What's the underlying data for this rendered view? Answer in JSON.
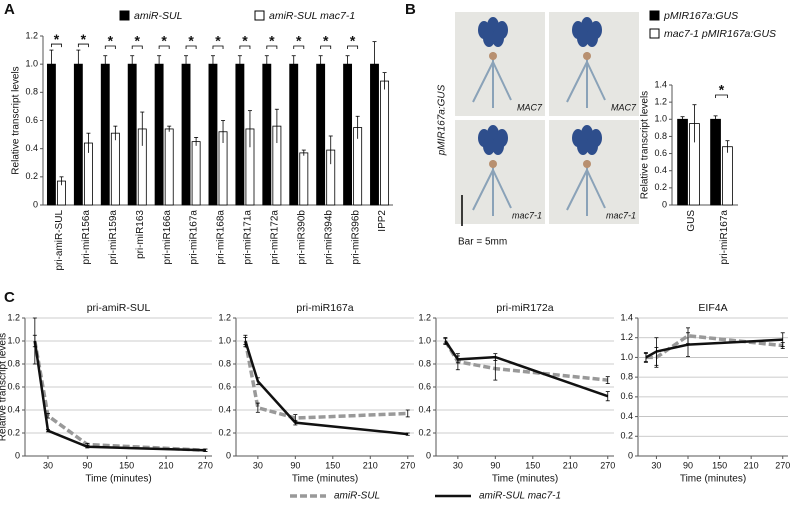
{
  "chart_data": [
    {
      "type": "bar",
      "panel": "A",
      "ylabel": "Relative transcript levels",
      "categories": [
        "pri-amiR-SUL",
        "pri-miR156a",
        "pri-miR159a",
        "pri-miR163",
        "pri-miR166a",
        "pri-miR167a",
        "pri-miR168a",
        "pri-miR171a",
        "pri-miR172a",
        "pri-miR390b",
        "pri-miR394b",
        "pri-miR396b",
        "IPP2"
      ],
      "series": [
        {
          "name": "amiR-SUL",
          "color": "#000000",
          "values": [
            1.0,
            1.0,
            1.0,
            1.0,
            1.0,
            1.0,
            1.0,
            1.0,
            1.0,
            1.0,
            1.0,
            1.0,
            1.0
          ],
          "errors": [
            0.1,
            0.1,
            0.06,
            0.06,
            0.06,
            0.06,
            0.06,
            0.06,
            0.06,
            0.06,
            0.06,
            0.06,
            0.16
          ]
        },
        {
          "name": "amiR-SUL mac7-1",
          "color": "#ffffff",
          "values": [
            0.17,
            0.44,
            0.51,
            0.54,
            0.54,
            0.45,
            0.52,
            0.54,
            0.56,
            0.37,
            0.39,
            0.55,
            0.88
          ],
          "errors": [
            0.03,
            0.07,
            0.05,
            0.12,
            0.02,
            0.03,
            0.08,
            0.13,
            0.12,
            0.02,
            0.1,
            0.08,
            0.06
          ]
        }
      ],
      "significance": [
        "*",
        "*",
        "*",
        "*",
        "*",
        "*",
        "*",
        "*",
        "*",
        "*",
        "*",
        "*",
        null
      ],
      "ylim": [
        0,
        1.2
      ],
      "yticks": [
        0,
        0.2,
        0.4,
        0.6,
        0.8,
        {
          "value": 1,
          "label": "1.0"
        },
        1.2
      ]
    },
    {
      "type": "bar",
      "panel": "B",
      "ylabel": "Relative transcript levels",
      "categories": [
        "GUS",
        "pri-miR167a"
      ],
      "series": [
        {
          "name": "pMIR167a:GUS",
          "color": "#000000",
          "values": [
            1.0,
            1.0
          ],
          "errors": [
            0.03,
            0.04
          ]
        },
        {
          "name": "mac7-1 pMIR167a:GUS",
          "color": "#ffffff",
          "values": [
            0.95,
            0.68
          ],
          "errors": [
            0.22,
            0.07
          ]
        }
      ],
      "significance": [
        null,
        "*"
      ],
      "ylim": [
        0,
        1.4
      ],
      "yticks": [
        0,
        0.2,
        0.4,
        0.6,
        0.8,
        {
          "value": 1,
          "label": "1.0"
        },
        1.2,
        1.4
      ]
    },
    {
      "type": "line",
      "panel": "C",
      "ylabel": "Relative transcript levels",
      "xlabel": "Time (minutes)",
      "x": [
        10,
        30,
        90,
        270
      ],
      "xlim": [
        -5,
        280
      ],
      "xticks": [
        30,
        90,
        150,
        210,
        270
      ],
      "grid": true,
      "series": [
        {
          "name": "amiR-SUL",
          "color": "#999999",
          "dash": true
        },
        {
          "name": "amiR-SUL mac7-1",
          "color": "#111111",
          "dash": false
        }
      ],
      "panels": [
        {
          "title": "pri-amiR-SUL",
          "ylim": [
            0,
            1.2
          ],
          "yticks": [
            0,
            0.2,
            0.4,
            0.6,
            0.8,
            {
              "value": 1,
              "label": "1.0"
            },
            1.2
          ],
          "values": [
            [
              1.0,
              0.35,
              0.1,
              0.05
            ],
            [
              1.0,
              0.22,
              0.08,
              0.05
            ]
          ],
          "errors": [
            [
              0.2,
              0.02,
              0.01,
              0.01
            ],
            [
              0.05,
              0.01,
              0.01,
              0.01
            ]
          ]
        },
        {
          "title": "pri-miR167a",
          "ylim": [
            0,
            1.2
          ],
          "yticks": [
            0,
            0.2,
            0.4,
            0.6,
            0.8,
            {
              "value": 1,
              "label": "1.0"
            },
            1.2
          ],
          "values": [
            [
              1.0,
              0.42,
              0.33,
              0.37
            ],
            [
              1.0,
              0.65,
              0.29,
              0.19
            ]
          ],
          "errors": [
            [
              0.05,
              0.04,
              0.03,
              0.03
            ],
            [
              0.03,
              0.03,
              0.02,
              0.01
            ]
          ]
        },
        {
          "title": "pri-miR172a",
          "ylim": [
            0,
            1.2
          ],
          "yticks": [
            0,
            0.2,
            0.4,
            0.6,
            0.8,
            {
              "value": 1,
              "label": "1.0"
            },
            1.2
          ],
          "values": [
            [
              1.0,
              0.82,
              0.76,
              0.66
            ],
            [
              1.0,
              0.84,
              0.86,
              0.52
            ]
          ],
          "errors": [
            [
              0.03,
              0.07,
              0.1,
              0.03
            ],
            [
              0.02,
              0.03,
              0.03,
              0.04
            ]
          ]
        },
        {
          "title": "EIF4A",
          "ylim": [
            0,
            1.4
          ],
          "yticks": [
            0,
            0.2,
            0.4,
            0.6,
            0.8,
            {
              "value": 1,
              "label": "1.0"
            },
            1.2,
            1.4
          ],
          "values": [
            [
              1.0,
              1.0,
              1.22,
              1.12
            ],
            [
              1.0,
              1.06,
              1.13,
              1.18
            ]
          ],
          "errors": [
            [
              0.05,
              0.1,
              0.08,
              0.03
            ],
            [
              0.04,
              0.14,
              0.12,
              0.07
            ]
          ]
        }
      ]
    }
  ],
  "micrographs": {
    "row_label": "pMIR167a:GUS",
    "labels": [
      "MAC7",
      "MAC7",
      "mac7-1",
      "mac7-1"
    ],
    "scale_bar": "Bar = 5mm"
  }
}
